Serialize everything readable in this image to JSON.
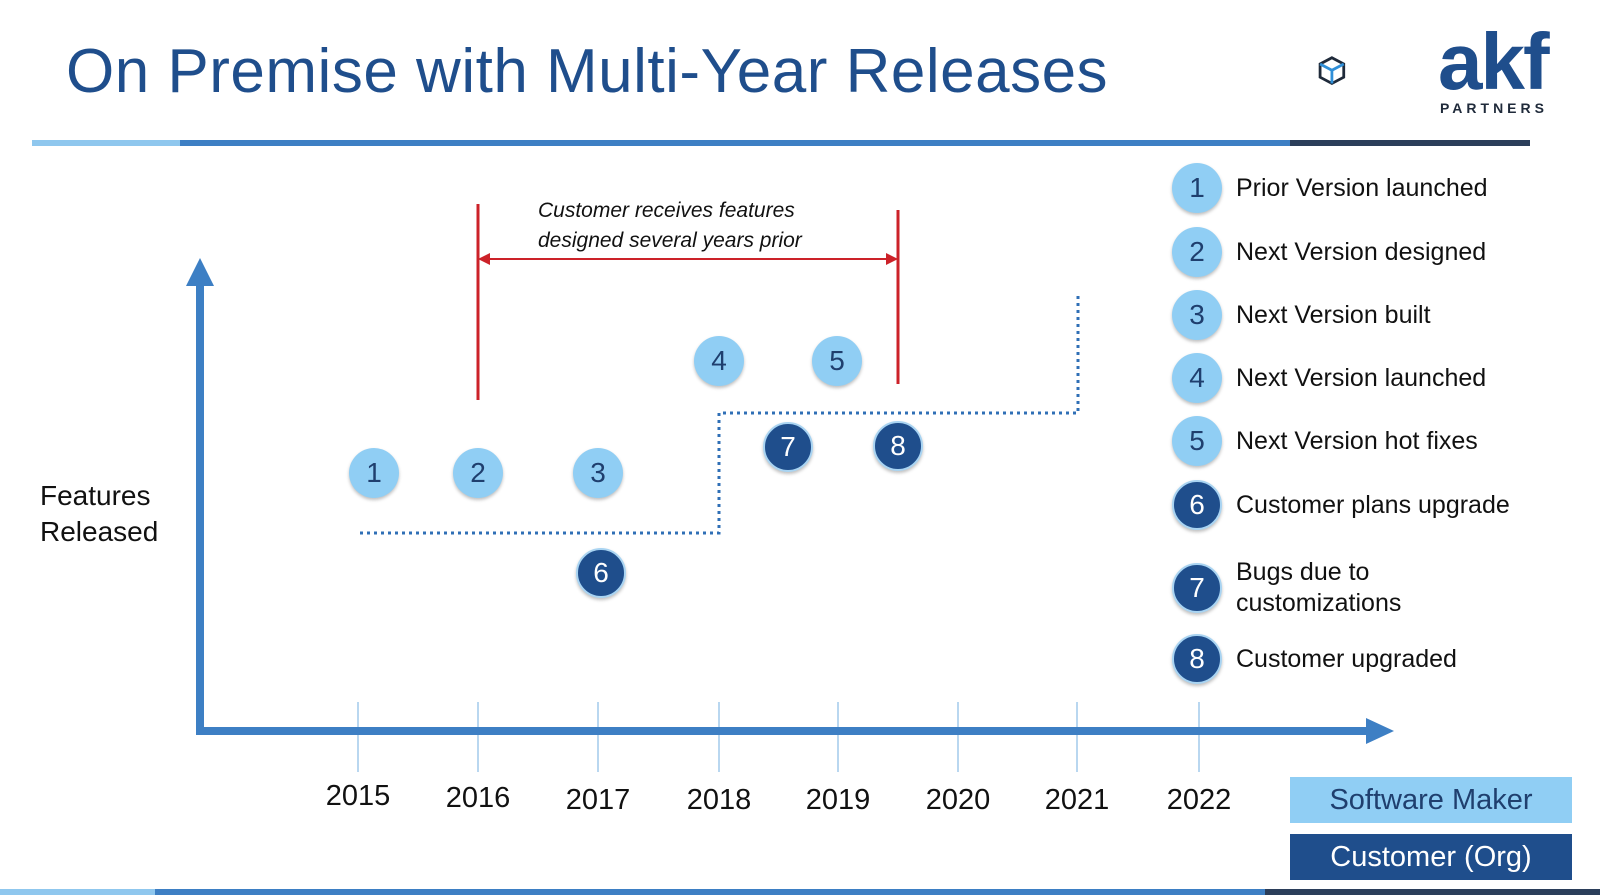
{
  "slide": {
    "title": "On Premise with Multi-Year Releases"
  },
  "logo": {
    "name": "akf",
    "sub": "PARTNERS",
    "icon": "cube-icon"
  },
  "diagram": {
    "y_axis_label_line1": "Features",
    "y_axis_label_line2": "Released",
    "years": [
      "2015",
      "2016",
      "2017",
      "2018",
      "2019",
      "2020",
      "2021",
      "2022"
    ],
    "annotation_line1": "Customer receives features",
    "annotation_line2": "designed several years prior",
    "badges": {
      "b1": "1",
      "b2": "2",
      "b3": "3",
      "b4": "4",
      "b5": "5",
      "b6": "6",
      "b7": "7",
      "b8": "8"
    }
  },
  "legend": {
    "items": [
      {
        "num": "1",
        "text": "Prior Version launched",
        "owner": "maker"
      },
      {
        "num": "2",
        "text": "Next Version designed",
        "owner": "maker"
      },
      {
        "num": "3",
        "text": "Next Version built",
        "owner": "maker"
      },
      {
        "num": "4",
        "text": "Next Version launched",
        "owner": "maker"
      },
      {
        "num": "5",
        "text": "Next Version hot fixes",
        "owner": "maker"
      },
      {
        "num": "6",
        "text": "Customer plans upgrade",
        "owner": "customer"
      },
      {
        "num": "7",
        "text": "Bugs due to customizations",
        "owner": "customer"
      },
      {
        "num": "8",
        "text": "Customer upgraded",
        "owner": "customer"
      }
    ]
  },
  "key": {
    "maker": "Software Maker",
    "customer": "Customer (Org)"
  },
  "colors": {
    "title": "#1f4e8c",
    "maker": "#90cef4",
    "customer": "#1f4e8c",
    "axis": "#3d7fc4",
    "annotation": "#cc2229"
  }
}
